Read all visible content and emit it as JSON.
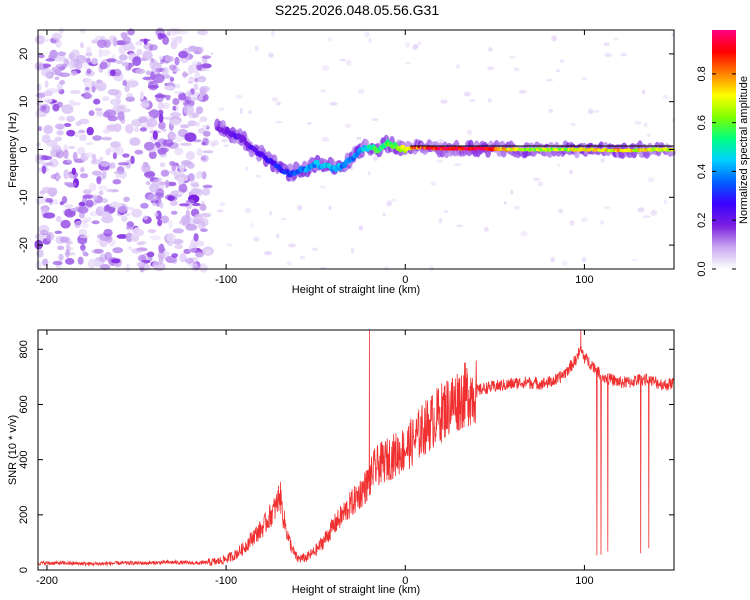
{
  "title": "S225.2026.048.05.56.G31",
  "chart_data": [
    {
      "type": "heatmap",
      "panel": "spectrogram",
      "xlabel": "Height of straight line (km)",
      "ylabel": "Frequency (Hz)",
      "xlim": [
        -205,
        150
      ],
      "ylim": [
        -25,
        25
      ],
      "xticks": [
        -200,
        -100,
        0,
        100
      ],
      "yticks": [
        -20,
        -10,
        0,
        10,
        20
      ],
      "colorbar": {
        "label": "Normalized spectral amplitude",
        "range": [
          0,
          0.98
        ],
        "ticks": [
          0,
          0.2,
          0.4,
          0.6,
          0.8
        ],
        "tick_labels": [
          "0.0",
          "0.2",
          "0.4",
          "0.6",
          "0.8"
        ],
        "colors": [
          "#ffffff",
          "#c9a8f0",
          "#7a1fe0",
          "#3a00ff",
          "#0060ff",
          "#00d0ff",
          "#00ff80",
          "#80ff00",
          "#ffff00",
          "#ff8000",
          "#ff0000",
          "#ff0080"
        ]
      },
      "noise_region_km": [
        -205,
        -110
      ],
      "signal_track": [
        {
          "x": -105,
          "freq": 4.5,
          "amp": 0.18
        },
        {
          "x": -100,
          "freq": 4.0,
          "amp": 0.2
        },
        {
          "x": -95,
          "freq": 3.0,
          "amp": 0.22
        },
        {
          "x": -90,
          "freq": 2.0,
          "amp": 0.2
        },
        {
          "x": -85,
          "freq": 0.0,
          "amp": 0.22
        },
        {
          "x": -80,
          "freq": -1.0,
          "amp": 0.25
        },
        {
          "x": -75,
          "freq": -2.5,
          "amp": 0.28
        },
        {
          "x": -70,
          "freq": -4.0,
          "amp": 0.3
        },
        {
          "x": -65,
          "freq": -5.0,
          "amp": 0.32
        },
        {
          "x": -60,
          "freq": -4.5,
          "amp": 0.35
        },
        {
          "x": -55,
          "freq": -4.0,
          "amp": 0.4
        },
        {
          "x": -50,
          "freq": -3.0,
          "amp": 0.42
        },
        {
          "x": -45,
          "freq": -3.5,
          "amp": 0.45
        },
        {
          "x": -40,
          "freq": -4.0,
          "amp": 0.45
        },
        {
          "x": -35,
          "freq": -3.5,
          "amp": 0.4
        },
        {
          "x": -30,
          "freq": -2.0,
          "amp": 0.38
        },
        {
          "x": -25,
          "freq": 0.0,
          "amp": 0.45
        },
        {
          "x": -20,
          "freq": 0.5,
          "amp": 0.5
        },
        {
          "x": -15,
          "freq": 0.0,
          "amp": 0.55
        },
        {
          "x": -10,
          "freq": 1.5,
          "amp": 0.6
        },
        {
          "x": -5,
          "freq": 0.5,
          "amp": 0.65
        },
        {
          "x": 0,
          "freq": 0.0,
          "amp": 0.7
        },
        {
          "x": 5,
          "freq": 0.5,
          "amp": 0.85
        },
        {
          "x": 20,
          "freq": 0.2,
          "amp": 0.95
        },
        {
          "x": 40,
          "freq": 0.2,
          "amp": 0.95
        },
        {
          "x": 60,
          "freq": 0.0,
          "amp": 0.7
        },
        {
          "x": 80,
          "freq": 0.0,
          "amp": 0.65
        },
        {
          "x": 100,
          "freq": 0.0,
          "amp": 0.7
        },
        {
          "x": 120,
          "freq": -0.2,
          "amp": 0.75
        },
        {
          "x": 140,
          "freq": 0.0,
          "amp": 0.7
        },
        {
          "x": 150,
          "freq": 0.0,
          "amp": 0.7
        }
      ]
    },
    {
      "type": "line",
      "panel": "snr",
      "xlabel": "Height of straight line (km)",
      "ylabel": "SNR (10 * v/v)",
      "xlim": [
        -205,
        150
      ],
      "ylim": [
        0,
        870
      ],
      "xticks": [
        -200,
        -100,
        0,
        100
      ],
      "yticks": [
        0,
        200,
        400,
        600,
        800
      ],
      "color": "#f03030",
      "series": [
        {
          "name": "SNR",
          "x": [
            -205,
            -190,
            -175,
            -160,
            -145,
            -130,
            -115,
            -105,
            -100,
            -95,
            -90,
            -85,
            -80,
            -75,
            -72,
            -70,
            -68,
            -65,
            -62,
            -60,
            -55,
            -50,
            -45,
            -40,
            -35,
            -30,
            -25,
            -20,
            -18,
            -15,
            -10,
            -5,
            0,
            5,
            10,
            15,
            20,
            25,
            30,
            35,
            40,
            45,
            50,
            55,
            60,
            65,
            70,
            75,
            80,
            85,
            90,
            95,
            98,
            100,
            105,
            110,
            115,
            120,
            125,
            130,
            135,
            140,
            145,
            150
          ],
          "y": [
            25,
            25,
            22,
            25,
            25,
            28,
            25,
            30,
            40,
            55,
            80,
            120,
            150,
            200,
            230,
            280,
            190,
            110,
            60,
            40,
            45,
            70,
            110,
            160,
            200,
            240,
            280,
            320,
            360,
            380,
            400,
            420,
            440,
            470,
            510,
            540,
            570,
            600,
            620,
            640,
            650,
            660,
            665,
            670,
            675,
            680,
            680,
            675,
            680,
            690,
            720,
            760,
            800,
            770,
            740,
            700,
            690,
            680,
            680,
            690,
            690,
            680,
            670,
            680
          ]
        }
      ],
      "spikes": [
        {
          "x": -20,
          "y": 870
        },
        {
          "x": 98,
          "y": 870
        }
      ]
    }
  ]
}
